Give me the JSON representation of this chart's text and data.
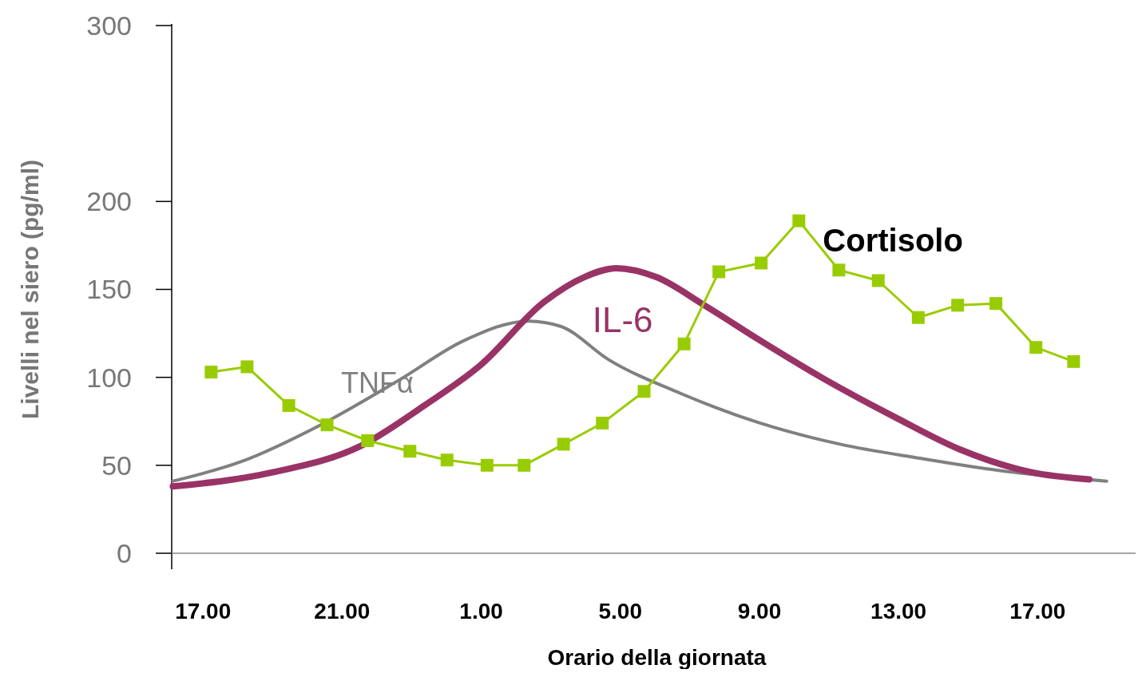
{
  "chart_data": {
    "type": "line",
    "xlabel": "Orario della giornata",
    "ylabel": "Livelli nel siero (pg/ml)",
    "xlim": [
      "2000-01-01T16:06",
      "2000-01-02T20:00"
    ],
    "xticks": [
      {
        "value": "2000-01-01T17:00",
        "label": "17.00"
      },
      {
        "value": "2000-01-01T21:00",
        "label": "21.00"
      },
      {
        "value": "2000-01-02T01:00",
        "label": "1.00"
      },
      {
        "value": "2000-01-02T05:00",
        "label": "5.00"
      },
      {
        "value": "2000-01-02T09:00",
        "label": "9.00"
      },
      {
        "value": "2000-01-02T13:00",
        "label": "13.00"
      },
      {
        "value": "2000-01-02T17:00",
        "label": "17.00"
      }
    ],
    "ylim": [
      0,
      300
    ],
    "yticks": [
      0,
      50,
      100,
      150,
      200,
      300
    ],
    "grid": false,
    "series": [
      {
        "name": "TNFα",
        "color": "#808080",
        "marker": "none",
        "x": [
          "2000-01-01T16:08",
          "2000-01-01T18:05",
          "2000-01-01T20:23",
          "2000-01-01T22:41",
          "2000-01-02T00:31",
          "2000-01-02T02:22",
          "2000-01-02T03:17",
          "2000-01-02T04:40",
          "2000-01-02T06:43",
          "2000-01-02T09:01",
          "2000-01-02T11:19",
          "2000-01-02T13:37",
          "2000-01-02T15:55",
          "2000-01-02T18:59"
        ],
        "values": [
          41,
          52,
          73,
          99,
          121,
          132,
          129,
          110,
          91,
          74,
          62,
          54,
          47,
          41
        ]
      },
      {
        "name": "IL-6",
        "color": "#993366",
        "marker": "none",
        "x": [
          "2000-01-01T16:08",
          "2000-01-01T19:00",
          "2000-01-01T21:32",
          "2000-01-01T23:22",
          "2000-01-02T00:59",
          "2000-01-02T02:49",
          "2000-01-02T03:58",
          "2000-01-02T04:53",
          "2000-01-02T06:02",
          "2000-01-02T07:25",
          "2000-01-02T09:01",
          "2000-01-02T10:52",
          "2000-01-02T12:56",
          "2000-01-02T14:46",
          "2000-01-02T16:50",
          "2000-01-02T18:29"
        ],
        "values": [
          38,
          46,
          61,
          84,
          107,
          143,
          157,
          162,
          157,
          141,
          121,
          99,
          77,
          59,
          46,
          42
        ]
      },
      {
        "name": "Cortisolo",
        "color": "#99cc00",
        "marker": "square",
        "x": [
          "2000-01-01T17:14",
          "2000-01-01T18:16",
          "2000-01-01T19:28",
          "2000-01-01T20:34",
          "2000-01-01T21:44",
          "2000-01-01T22:57",
          "2000-01-02T00:01",
          "2000-01-02T01:10",
          "2000-01-02T02:14",
          "2000-01-02T03:22",
          "2000-01-02T04:29",
          "2000-01-02T05:41",
          "2000-01-02T06:50",
          "2000-01-02T07:50",
          "2000-01-02T09:03",
          "2000-01-02T10:08",
          "2000-01-02T11:17",
          "2000-01-02T12:25",
          "2000-01-02T13:34",
          "2000-01-02T14:42",
          "2000-01-02T15:48",
          "2000-01-02T16:57",
          "2000-01-02T18:02"
        ],
        "values": [
          103,
          106,
          84,
          73,
          64,
          58,
          53,
          50,
          50,
          62,
          74,
          92,
          119,
          160,
          165,
          189,
          161,
          155,
          134,
          141,
          142,
          117,
          109
        ]
      }
    ]
  }
}
